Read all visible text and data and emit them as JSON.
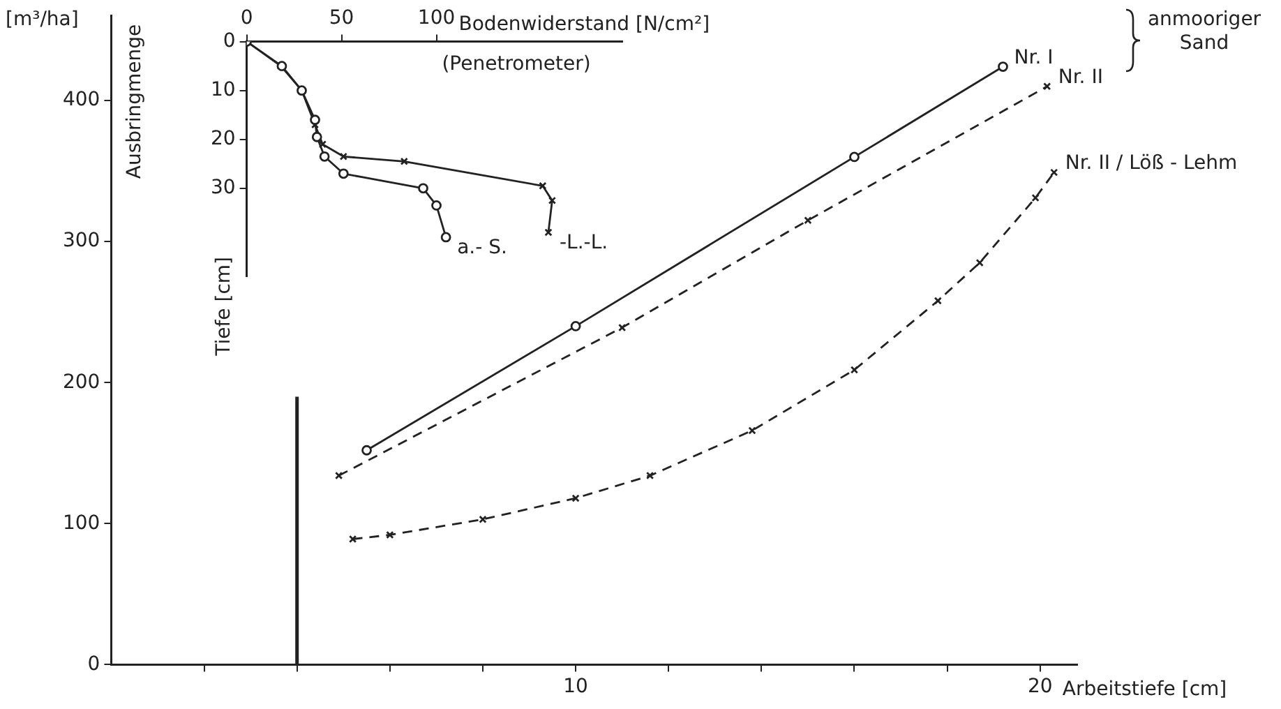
{
  "chart_data": [
    {
      "type": "line",
      "ylabel": "Ausbringmenge",
      "xlabel": "Arbeitstiefe [cm]",
      "annotations": [
        "[m³/ha]",
        "anmooriger Sand"
      ],
      "xlim": [
        0,
        20.8
      ],
      "ylim": [
        0,
        460
      ],
      "xticks": [
        {
          "value": 2,
          "label": null
        },
        {
          "value": 4,
          "label": null
        },
        {
          "value": 6,
          "label": null
        },
        {
          "value": 8,
          "label": null
        },
        10,
        {
          "value": 12,
          "label": null
        },
        {
          "value": 14,
          "label": null
        },
        {
          "value": 16,
          "label": null
        },
        {
          "value": 18,
          "label": null
        },
        20
      ],
      "yticks": [
        0,
        100,
        200,
        300,
        400
      ],
      "grid": false,
      "legend": false,
      "series": [
        {
          "name": "Nr. I",
          "color": "#222222",
          "marker": "circle",
          "line_style": "solid",
          "x": [
            5.5,
            10,
            16,
            19.2
          ],
          "values": [
            152,
            240,
            360,
            424
          ]
        },
        {
          "name": "Nr. II",
          "color": "#222222",
          "marker": "cross",
          "line_style": "dashed",
          "x": [
            4.9,
            11,
            15,
            20.15
          ],
          "values": [
            134,
            239,
            315,
            410
          ]
        },
        {
          "name": "Nr. II / Löß - Lehm",
          "color": "#222222",
          "marker": "cross",
          "line_style": "dashed",
          "x": [
            5.2,
            6,
            8,
            10,
            11.6,
            13.8,
            16,
            17.8,
            18.7,
            19.9,
            20.3
          ],
          "values": [
            89,
            92,
            103,
            118,
            134,
            166,
            209,
            258,
            285,
            331,
            349
          ]
        },
        {
          "color": "#222222",
          "marker": "none",
          "line_style": "solid",
          "x": [
            4,
            4
          ],
          "values": [
            0,
            190
          ]
        }
      ]
    },
    {
      "type": "line",
      "xlabel": "Bodenwiderstand [N/cm²]",
      "ylabel": "Tiefe [cm]",
      "annotations": [
        "(Penetrometer)"
      ],
      "xlim": [
        0,
        198
      ],
      "ylim": [
        48,
        0
      ],
      "xticks": [
        0,
        50,
        100
      ],
      "yticks": [
        0,
        10,
        20,
        30
      ],
      "grid": false,
      "legend": false,
      "series": [
        {
          "name": "a.- S.",
          "color": "#222222",
          "marker": "circle",
          "line_style": "solid",
          "x": [
            0,
            18.5,
            29,
            36,
            37,
            41,
            51,
            93,
            100,
            105
          ],
          "values": [
            0,
            5,
            10,
            16,
            19.5,
            23.5,
            27,
            30,
            33.5,
            40
          ]
        },
        {
          "name": "-L.-L.",
          "color": "#222222",
          "marker": "cross",
          "line_style": "solid",
          "x": [
            0,
            18,
            29,
            36,
            40,
            51,
            83,
            156,
            161,
            159
          ],
          "values": [
            0,
            5,
            10,
            17,
            21,
            23.5,
            24.5,
            29.5,
            32.5,
            39
          ]
        }
      ]
    }
  ]
}
